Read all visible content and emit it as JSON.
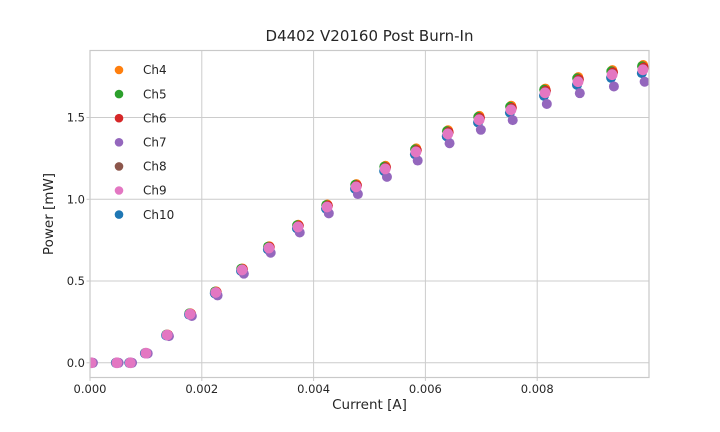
{
  "figure": {
    "background": "#ffffff",
    "text_color": "#262626",
    "grid_color": "#cccccc",
    "spine_color": "#c9c9c9"
  },
  "chart_data": {
    "type": "scatter",
    "title": "D4402 V20160 Post Burn-In",
    "xlabel": "Current [A]",
    "ylabel": "Power [mW]",
    "grid": true,
    "legend_position": "upper left",
    "xlim": [
      0.0,
      0.01
    ],
    "ylim": [
      -0.09,
      1.91
    ],
    "xticks": [
      0.0,
      0.002,
      0.004,
      0.006,
      0.008
    ],
    "xtick_labels": [
      "0.000",
      "0.002",
      "0.004",
      "0.006",
      "0.008"
    ],
    "yticks": [
      0.0,
      0.5,
      1.0,
      1.5
    ],
    "ytick_labels": [
      "0.0",
      "0.5",
      "1.0",
      "1.5"
    ],
    "x": [
      2e-05,
      0.00048,
      0.00072,
      0.001,
      0.00138,
      0.00179,
      0.00225,
      0.00272,
      0.0032,
      0.00372,
      0.00424,
      0.00476,
      0.00528,
      0.00583,
      0.0064,
      0.00696,
      0.00753,
      0.00814,
      0.00873,
      0.00934,
      0.00989
    ],
    "series": [
      {
        "name": "Ch4",
        "color": "#ff7f0e",
        "values": [
          0.0,
          0.0,
          0.0,
          0.06,
          0.173,
          0.303,
          0.437,
          0.577,
          0.713,
          0.844,
          0.968,
          1.093,
          1.205,
          1.311,
          1.422,
          1.51,
          1.572,
          1.677,
          1.747,
          1.79,
          1.821
        ]
      },
      {
        "name": "Ch5",
        "color": "#2ca02c",
        "values": [
          0.0,
          0.0,
          0.0,
          0.06,
          0.172,
          0.302,
          0.435,
          0.575,
          0.71,
          0.841,
          0.964,
          1.089,
          1.2,
          1.305,
          1.417,
          1.504,
          1.566,
          1.671,
          1.74,
          1.783,
          1.814
        ]
      },
      {
        "name": "Ch6",
        "color": "#d62728",
        "values": [
          0.0,
          0.0,
          0.0,
          0.059,
          0.171,
          0.3,
          0.433,
          0.573,
          0.708,
          0.838,
          0.961,
          1.085,
          1.195,
          1.3,
          1.411,
          1.498,
          1.559,
          1.664,
          1.733,
          1.776,
          1.806
        ]
      },
      {
        "name": "Ch7",
        "color": "#9467bd",
        "values": [
          0.0,
          0.0,
          0.0,
          0.057,
          0.163,
          0.286,
          0.412,
          0.545,
          0.673,
          0.797,
          0.914,
          1.032,
          1.137,
          1.237,
          1.343,
          1.425,
          1.484,
          1.583,
          1.649,
          1.69,
          1.719
        ]
      },
      {
        "name": "Ch8",
        "color": "#8c564b",
        "values": [
          0.0,
          0.0,
          0.0,
          0.059,
          0.171,
          0.299,
          0.431,
          0.57,
          0.704,
          0.833,
          0.956,
          1.079,
          1.19,
          1.294,
          1.404,
          1.49,
          1.552,
          1.656,
          1.724,
          1.767,
          1.797
        ]
      },
      {
        "name": "Ch9",
        "color": "#e377c2",
        "values": [
          0.0,
          0.0,
          0.0,
          0.059,
          0.17,
          0.298,
          0.43,
          0.568,
          0.702,
          0.831,
          0.953,
          1.076,
          1.186,
          1.29,
          1.4,
          1.486,
          1.547,
          1.651,
          1.719,
          1.762,
          1.792
        ]
      },
      {
        "name": "Ch10",
        "color": "#1f77b4",
        "values": [
          0.0,
          0.0,
          0.0,
          0.058,
          0.168,
          0.295,
          0.425,
          0.562,
          0.694,
          0.822,
          0.943,
          1.064,
          1.173,
          1.276,
          1.385,
          1.47,
          1.53,
          1.633,
          1.7,
          1.743,
          1.772
        ]
      }
    ]
  }
}
